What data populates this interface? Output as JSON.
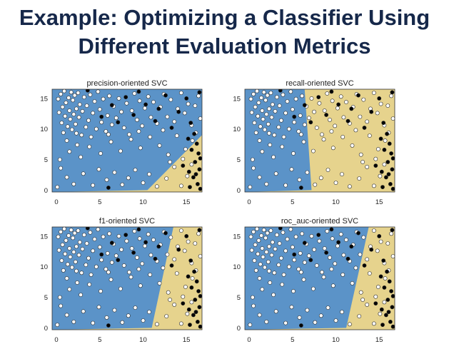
{
  "slide": {
    "title_line1": "Example: Optimizing a Classifier Using",
    "title_line2": "Different Evaluation Metrics"
  },
  "colors": {
    "region_negative": "#5b93c8",
    "region_positive": "#e6d38d",
    "point_negative": "#ffffff",
    "point_positive": "#000000",
    "title": "#16284a"
  },
  "chart_data": [
    {
      "type": "scatter",
      "title": "precision-oriented SVC",
      "xlabel": "",
      "ylabel": "",
      "xlim": [
        -0.5,
        16.8
      ],
      "ylim": [
        -0.3,
        16.5
      ],
      "xticks": [
        0,
        5,
        10,
        15
      ],
      "yticks": [
        0,
        5,
        10,
        15
      ],
      "decision_boundary": [
        [
          10.5,
          0
        ],
        [
          16.8,
          9
        ]
      ],
      "regions": [
        "negative (blue)",
        "positive (yellow)"
      ]
    },
    {
      "type": "scatter",
      "title": "recall-oriented SVC",
      "xlabel": "",
      "ylabel": "",
      "xlim": [
        -0.5,
        16.8
      ],
      "ylim": [
        -0.3,
        16.5
      ],
      "xticks": [
        0,
        5,
        10,
        15
      ],
      "yticks": [
        0,
        5,
        10,
        15
      ],
      "decision_boundary": [
        [
          7.2,
          0
        ],
        [
          6.4,
          16.5
        ]
      ],
      "regions": [
        "negative (blue)",
        "positive (yellow)"
      ]
    },
    {
      "type": "scatter",
      "title": "f1-oriented SVC",
      "xlabel": "",
      "ylabel": "",
      "xlim": [
        -0.5,
        16.8
      ],
      "ylim": [
        -0.3,
        16.5
      ],
      "xticks": [
        0,
        5,
        10,
        15
      ],
      "yticks": [
        0,
        5,
        10,
        15
      ],
      "decision_boundary": [
        [
          11,
          0
        ],
        [
          13.5,
          16.5
        ]
      ],
      "regions": [
        "negative (blue)",
        "positive (yellow)"
      ]
    },
    {
      "type": "scatter",
      "title": "roc_auc-oriented SVC",
      "xlabel": "",
      "ylabel": "",
      "xlim": [
        -0.5,
        16.8
      ],
      "ylim": [
        -0.3,
        16.5
      ],
      "xticks": [
        0,
        5,
        10,
        15
      ],
      "yticks": [
        0,
        5,
        10,
        15
      ],
      "decision_boundary": [
        [
          11.2,
          0
        ],
        [
          13.8,
          16.5
        ]
      ],
      "regions": [
        "negative (blue)",
        "positive (yellow)"
      ]
    }
  ],
  "points": [
    [
      0.1,
      0.5,
      0
    ],
    [
      0.2,
      14.9,
      0
    ],
    [
      0.3,
      12.7,
      0
    ],
    [
      0.4,
      5.0,
      0
    ],
    [
      0.5,
      15.7,
      0
    ],
    [
      0.6,
      11.0,
      0
    ],
    [
      0.7,
      13.6,
      0
    ],
    [
      0.8,
      9.4,
      0
    ],
    [
      0.9,
      16.2,
      0
    ],
    [
      1.0,
      12.1,
      0
    ],
    [
      1.1,
      14.3,
      0
    ],
    [
      1.2,
      8.1,
      0
    ],
    [
      1.3,
      10.4,
      0
    ],
    [
      1.4,
      15.1,
      0
    ],
    [
      1.5,
      13.0,
      0
    ],
    [
      1.6,
      11.6,
      0
    ],
    [
      1.7,
      16.0,
      0
    ],
    [
      1.8,
      9.9,
      0
    ],
    [
      1.9,
      14.7,
      0
    ],
    [
      2.0,
      12.4,
      0
    ],
    [
      2.1,
      15.5,
      0
    ],
    [
      2.2,
      10.8,
      0
    ],
    [
      2.3,
      13.3,
      0
    ],
    [
      2.4,
      7.4,
      0
    ],
    [
      2.5,
      15.9,
      0
    ],
    [
      2.6,
      11.9,
      0
    ],
    [
      2.7,
      14.0,
      0
    ],
    [
      2.9,
      9.0,
      0
    ],
    [
      3.0,
      12.9,
      0
    ],
    [
      3.2,
      15.2,
      0
    ],
    [
      3.4,
      10.3,
      0
    ],
    [
      3.5,
      13.8,
      0
    ],
    [
      3.7,
      11.4,
      0
    ],
    [
      3.9,
      15.6,
      0
    ],
    [
      4.0,
      8.7,
      0
    ],
    [
      4.2,
      12.6,
      0
    ],
    [
      4.4,
      14.5,
      0
    ],
    [
      4.6,
      10.0,
      0
    ],
    [
      4.8,
      16.1,
      0
    ],
    [
      5.0,
      13.2,
      0
    ],
    [
      5.2,
      11.1,
      0
    ],
    [
      5.4,
      14.9,
      0
    ],
    [
      5.7,
      9.6,
      0
    ],
    [
      5.9,
      12.2,
      0
    ],
    [
      6.1,
      15.4,
      0
    ],
    [
      6.4,
      10.7,
      0
    ],
    [
      6.6,
      13.7,
      0
    ],
    [
      6.9,
      11.8,
      0
    ],
    [
      7.2,
      15.0,
      0
    ],
    [
      7.5,
      12.8,
      0
    ],
    [
      7.8,
      10.2,
      0
    ],
    [
      8.1,
      14.2,
      0
    ],
    [
      8.4,
      9.1,
      0
    ],
    [
      8.7,
      13.0,
      0
    ],
    [
      9.0,
      15.8,
      0
    ],
    [
      9.3,
      11.5,
      0
    ],
    [
      9.6,
      14.6,
      0
    ],
    [
      9.9,
      10.5,
      0
    ],
    [
      10.2,
      13.4,
      0
    ],
    [
      10.6,
      15.3,
      0
    ],
    [
      10.9,
      11.9,
      0
    ],
    [
      11.2,
      14.4,
      0
    ],
    [
      11.6,
      10.9,
      0
    ],
    [
      12.0,
      13.6,
      0
    ],
    [
      12.4,
      15.7,
      0
    ],
    [
      12.8,
      12.0,
      0
    ],
    [
      13.2,
      14.8,
      0
    ],
    [
      13.6,
      11.2,
      0
    ],
    [
      14.0,
      13.3,
      0
    ],
    [
      14.4,
      15.9,
      0
    ],
    [
      14.8,
      12.6,
      0
    ],
    [
      15.2,
      14.1,
      0
    ],
    [
      15.6,
      10.6,
      0
    ],
    [
      16.0,
      13.8,
      0
    ],
    [
      16.4,
      15.4,
      0
    ],
    [
      16.6,
      11.7,
      0
    ],
    [
      0.5,
      3.6,
      0
    ],
    [
      1.2,
      2.1,
      0
    ],
    [
      2.0,
      1.0,
      0
    ],
    [
      3.1,
      2.7,
      0
    ],
    [
      4.2,
      0.8,
      0
    ],
    [
      4.9,
      3.4,
      0
    ],
    [
      5.8,
      1.7,
      0
    ],
    [
      6.7,
      2.9,
      0
    ],
    [
      7.6,
      0.9,
      0
    ],
    [
      8.3,
      2.0,
      0
    ],
    [
      9.1,
      3.3,
      0
    ],
    [
      10.0,
      1.2,
      0
    ],
    [
      10.7,
      2.6,
      0
    ],
    [
      11.6,
      0.6,
      0
    ],
    [
      12.7,
      1.9,
      0
    ],
    [
      13.6,
      3.8,
      0
    ],
    [
      14.4,
      0.7,
      0
    ],
    [
      15.1,
      2.3,
      0
    ],
    [
      1.5,
      6.3,
      0
    ],
    [
      2.8,
      5.4,
      0
    ],
    [
      3.8,
      7.1,
      0
    ],
    [
      5.1,
      6.0,
      0
    ],
    [
      6.3,
      7.9,
      0
    ],
    [
      7.4,
      6.4,
      0
    ],
    [
      8.6,
      8.3,
      0
    ],
    [
      9.7,
      6.9,
      0
    ],
    [
      10.8,
      8.7,
      0
    ],
    [
      11.9,
      7.3,
      0
    ],
    [
      12.9,
      5.8,
      0
    ],
    [
      13.9,
      8.9,
      0
    ],
    [
      14.9,
      6.7,
      0
    ],
    [
      15.7,
      8.1,
      0
    ],
    [
      2.3,
      9.3,
      0
    ],
    [
      6.0,
      9.1,
      0
    ],
    [
      9.5,
      9.6,
      0
    ],
    [
      12.3,
      9.8,
      0
    ],
    [
      16.1,
      9.4,
      0
    ],
    [
      13.1,
      4.6,
      0
    ],
    [
      14.6,
      5.1,
      0
    ],
    [
      15.6,
      4.2,
      0
    ],
    [
      3.6,
      16.3,
      1
    ],
    [
      5.2,
      12.0,
      1
    ],
    [
      6.4,
      13.9,
      1
    ],
    [
      7.1,
      11.1,
      1
    ],
    [
      8.0,
      15.2,
      1
    ],
    [
      8.9,
      12.3,
      1
    ],
    [
      10.3,
      14.0,
      1
    ],
    [
      11.4,
      11.3,
      1
    ],
    [
      12.6,
      15.5,
      1
    ],
    [
      13.3,
      10.2,
      1
    ],
    [
      14.1,
      12.8,
      1
    ],
    [
      15.0,
      15.0,
      1
    ],
    [
      15.5,
      11.0,
      1
    ],
    [
      15.9,
      9.2,
      1
    ],
    [
      16.2,
      7.6,
      1
    ],
    [
      16.4,
      6.0,
      1
    ],
    [
      16.0,
      4.6,
      1
    ],
    [
      16.5,
      3.4,
      1
    ],
    [
      15.8,
      2.1,
      1
    ],
    [
      16.3,
      1.0,
      1
    ],
    [
      15.4,
      0.5,
      1
    ],
    [
      16.6,
      0.2,
      1
    ],
    [
      15.2,
      8.4,
      1
    ],
    [
      16.6,
      5.2,
      1
    ],
    [
      14.6,
      4.0,
      1
    ],
    [
      15.6,
      6.6,
      1
    ],
    [
      15.3,
      3.0,
      1
    ],
    [
      16.1,
      2.6,
      1
    ],
    [
      6.0,
      0.4,
      1
    ],
    [
      11.8,
      13.3,
      1
    ],
    [
      9.5,
      16.1,
      1
    ],
    [
      16.5,
      16.0,
      1
    ]
  ]
}
